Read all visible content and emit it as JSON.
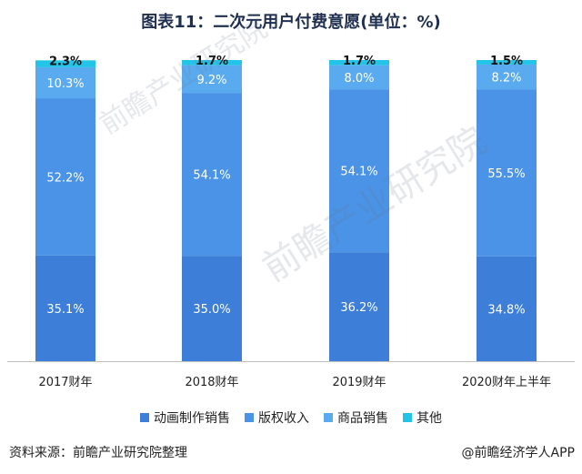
{
  "chart_data": {
    "type": "bar",
    "stacked": true,
    "title": "图表11：二次元用户付费意愿(单位：%)",
    "categories": [
      "2017财年",
      "2018财年",
      "2019财年",
      "2020财年上半年"
    ],
    "series": [
      {
        "name": "动画制作销售",
        "color": "#3d7fd8",
        "values": [
          35.1,
          35.0,
          36.2,
          34.8
        ]
      },
      {
        "name": "版权收入",
        "color": "#4a93e6",
        "values": [
          52.2,
          54.1,
          54.1,
          55.5
        ]
      },
      {
        "name": "商品销售",
        "color": "#5aaaf0",
        "values": [
          10.3,
          9.2,
          8.0,
          8.2
        ]
      },
      {
        "name": "其他",
        "color": "#22c4e8",
        "values": [
          2.3,
          1.7,
          1.7,
          1.5
        ]
      }
    ],
    "ylim": [
      0,
      100
    ],
    "grid": false,
    "legend": "bottom"
  },
  "labels": {
    "values": [
      [
        "35.1%",
        "52.2%",
        "10.3%",
        "2.3%"
      ],
      [
        "35.0%",
        "54.1%",
        "9.2%",
        "1.7%"
      ],
      [
        "36.2%",
        "54.1%",
        "8.0%",
        "1.7%"
      ],
      [
        "34.8%",
        "55.5%",
        "8.2%",
        "1.5%"
      ]
    ]
  },
  "footer": {
    "source": "资料来源：前瞻产业研究院整理",
    "credit": "@前瞻经济学人APP"
  },
  "watermark": {
    "text": "前瞻产业研究院"
  }
}
